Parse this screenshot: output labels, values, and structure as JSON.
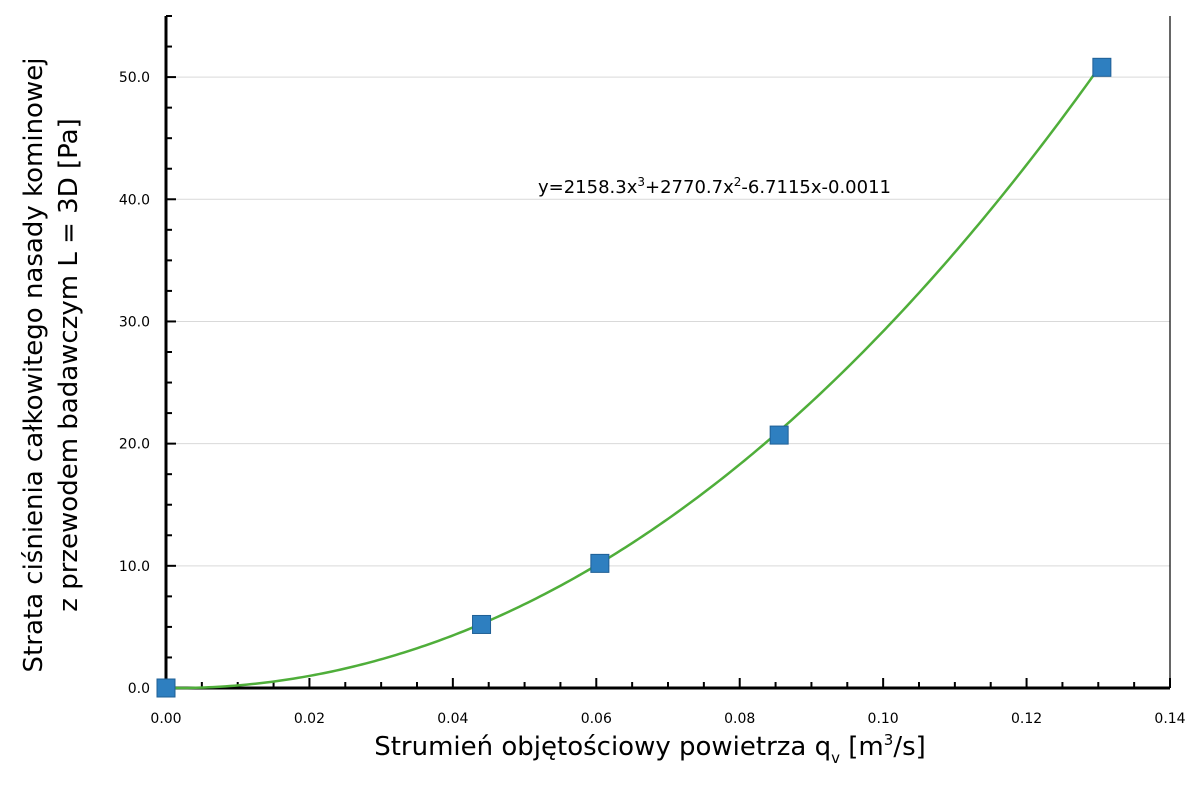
{
  "chart_data": {
    "type": "scatter",
    "x": [
      0.0,
      0.044,
      0.0605,
      0.0855,
      0.1305
    ],
    "y": [
      0.0,
      5.2,
      10.2,
      20.7,
      50.8
    ],
    "trendline": {
      "type": "polynomial",
      "coefficients": [
        2158.3,
        2770.7,
        -6.7115,
        -0.0011
      ],
      "equation_prefix": "y=2158.3x",
      "equation_sup1": "3",
      "equation_mid1": "+2770.7x",
      "equation_sup2": "2",
      "equation_suffix": "-6.7115x-0.0011"
    },
    "xlabel_main": "Strumień objętościowy powietrza q",
    "xlabel_sub": "v",
    "xlabel_open": " [m",
    "xlabel_sup": "3",
    "xlabel_close": "/s]",
    "ylabel_line1": "Strata ciśnienia całkowitego nasady kominowej",
    "ylabel_line2": "z przewodem badawczym L = 3D [Pa]",
    "xlim": [
      0.0,
      0.14
    ],
    "ylim": [
      0.0,
      55.0
    ],
    "xticks": [
      "0.00",
      "0.02",
      "0.04",
      "0.06",
      "0.08",
      "0.10",
      "0.12",
      "0.14"
    ],
    "yticks": [
      "0.0",
      "10.0",
      "20.0",
      "30.0",
      "40.0",
      "50.0"
    ],
    "grid": "horizontal",
    "colors": {
      "marker": "#2e7fc0",
      "marker_edge": "#1f5f95",
      "trendline": "#4fae3a",
      "grid": "#d9d9d9",
      "axis": "#000000"
    }
  }
}
